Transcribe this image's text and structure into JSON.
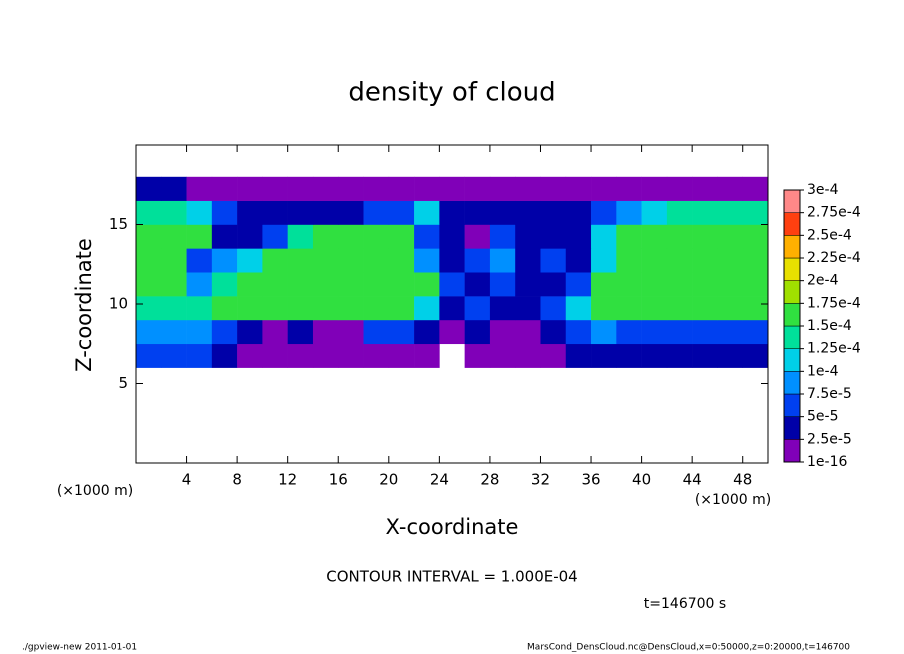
{
  "chart_data": {
    "type": "heatmap",
    "title": "density of cloud",
    "x_label": "X-coordinate",
    "y_label": "Z-coordinate",
    "x_unit_left": "(×1000 m)",
    "x_unit_right": "(×1000 m)",
    "annotation": "CONTOUR INTERVAL = 1.000E-04",
    "time_label": "t=146700 s",
    "footer_left": "./gpview-new  2011-01-01",
    "footer_right": "MarsCond_DensCloud.nc@DensCloud,x=0:50000,z=0:20000,t=146700",
    "xlim": [
      0,
      50
    ],
    "ylim": [
      0,
      20
    ],
    "xticks": [
      4,
      8,
      12,
      16,
      20,
      24,
      28,
      32,
      36,
      40,
      44,
      48
    ],
    "yticks": [
      5,
      10,
      15
    ],
    "x_bins": [
      0,
      2,
      4,
      6,
      8,
      10,
      12,
      14,
      16,
      18,
      20,
      22,
      24,
      26,
      28,
      30,
      32,
      34,
      36,
      38,
      40,
      42,
      44,
      46,
      48,
      50
    ],
    "y_bins": [
      6,
      7.5,
      9,
      10.5,
      12,
      13.5,
      15,
      16.5,
      18
    ],
    "values": [
      [
        6e-05,
        6e-05,
        6e-05,
        3e-05,
        1e-05,
        1e-05,
        1e-05,
        1e-05,
        1e-05,
        1e-05,
        1e-05,
        1e-05,
        null,
        1e-05,
        1e-05,
        1e-05,
        1e-05,
        3e-05,
        3e-05,
        3e-05,
        3e-05,
        3e-05,
        3e-05,
        3e-05,
        3e-05
      ],
      [
        9e-05,
        9e-05,
        9e-05,
        6e-05,
        3e-05,
        1e-05,
        3e-05,
        1e-05,
        1e-05,
        6e-05,
        6e-05,
        3e-05,
        1e-05,
        3e-05,
        1e-05,
        1e-05,
        3e-05,
        6e-05,
        9e-05,
        6e-05,
        6e-05,
        6e-05,
        6e-05,
        6e-05,
        6e-05
      ],
      [
        0.00014,
        0.00014,
        0.00014,
        0.00016,
        0.00016,
        0.00016,
        0.00016,
        0.00016,
        0.00016,
        0.00016,
        0.00016,
        0.00011,
        3e-05,
        6e-05,
        3e-05,
        3e-05,
        6e-05,
        0.00011,
        0.00016,
        0.00016,
        0.00016,
        0.00016,
        0.00016,
        0.00016,
        0.00016
      ],
      [
        0.00016,
        0.00016,
        9e-05,
        0.00014,
        0.00016,
        0.00016,
        0.00016,
        0.00016,
        0.00016,
        0.00016,
        0.00016,
        0.00016,
        6e-05,
        3e-05,
        6e-05,
        3e-05,
        3e-05,
        6e-05,
        0.00016,
        0.00016,
        0.00016,
        0.00016,
        0.00016,
        0.00016,
        0.00016
      ],
      [
        0.00016,
        0.00016,
        6e-05,
        9e-05,
        0.00011,
        0.00016,
        0.00016,
        0.00016,
        0.00016,
        0.00016,
        0.00016,
        9e-05,
        3e-05,
        6e-05,
        9e-05,
        3e-05,
        6e-05,
        3e-05,
        0.00011,
        0.00016,
        0.00016,
        0.00016,
        0.00016,
        0.00016,
        0.00016
      ],
      [
        0.00016,
        0.00016,
        0.00016,
        3e-05,
        3e-05,
        6e-05,
        0.00014,
        0.00016,
        0.00016,
        0.00016,
        0.00016,
        6e-05,
        3e-05,
        1e-05,
        6e-05,
        3e-05,
        3e-05,
        3e-05,
        0.00011,
        0.00016,
        0.00016,
        0.00016,
        0.00016,
        0.00016,
        0.00016
      ],
      [
        0.00014,
        0.00014,
        0.00011,
        6e-05,
        3e-05,
        3e-05,
        3e-05,
        3e-05,
        3e-05,
        6e-05,
        6e-05,
        0.00011,
        3e-05,
        3e-05,
        3e-05,
        3e-05,
        3e-05,
        3e-05,
        6e-05,
        9e-05,
        0.00011,
        0.00014,
        0.00014,
        0.00014,
        0.00014
      ],
      [
        3e-05,
        3e-05,
        1e-05,
        1e-05,
        1e-05,
        1e-05,
        1e-05,
        1e-05,
        1e-05,
        1e-05,
        1e-05,
        1e-05,
        1e-05,
        1e-05,
        1e-05,
        1e-05,
        1e-05,
        1e-05,
        1e-05,
        1e-05,
        1e-05,
        1e-05,
        1e-05,
        1e-05,
        1e-05
      ]
    ],
    "colorbar": {
      "ticks": [
        {
          "value": 1e-16,
          "label": "1e-16"
        },
        {
          "value": 2.5e-05,
          "label": "2.5e-5"
        },
        {
          "value": 5e-05,
          "label": "5e-5"
        },
        {
          "value": 7.5e-05,
          "label": "7.5e-5"
        },
        {
          "value": 0.0001,
          "label": "1e-4"
        },
        {
          "value": 0.000125,
          "label": "1.25e-4"
        },
        {
          "value": 0.00015,
          "label": "1.5e-4"
        },
        {
          "value": 0.000175,
          "label": "1.75e-4"
        },
        {
          "value": 0.0002,
          "label": "2e-4"
        },
        {
          "value": 0.000225,
          "label": "2.25e-4"
        },
        {
          "value": 0.00025,
          "label": "2.5e-4"
        },
        {
          "value": 0.000275,
          "label": "2.75e-4"
        },
        {
          "value": 0.0003,
          "label": "3e-4"
        }
      ],
      "colors": [
        "#8000b8",
        "#0000a8",
        "#0040f0",
        "#0090ff",
        "#00d0e8",
        "#00e09a",
        "#30e040",
        "#a0e000",
        "#e8e000",
        "#ffb000",
        "#ff4010",
        "#ff8888"
      ]
    }
  }
}
